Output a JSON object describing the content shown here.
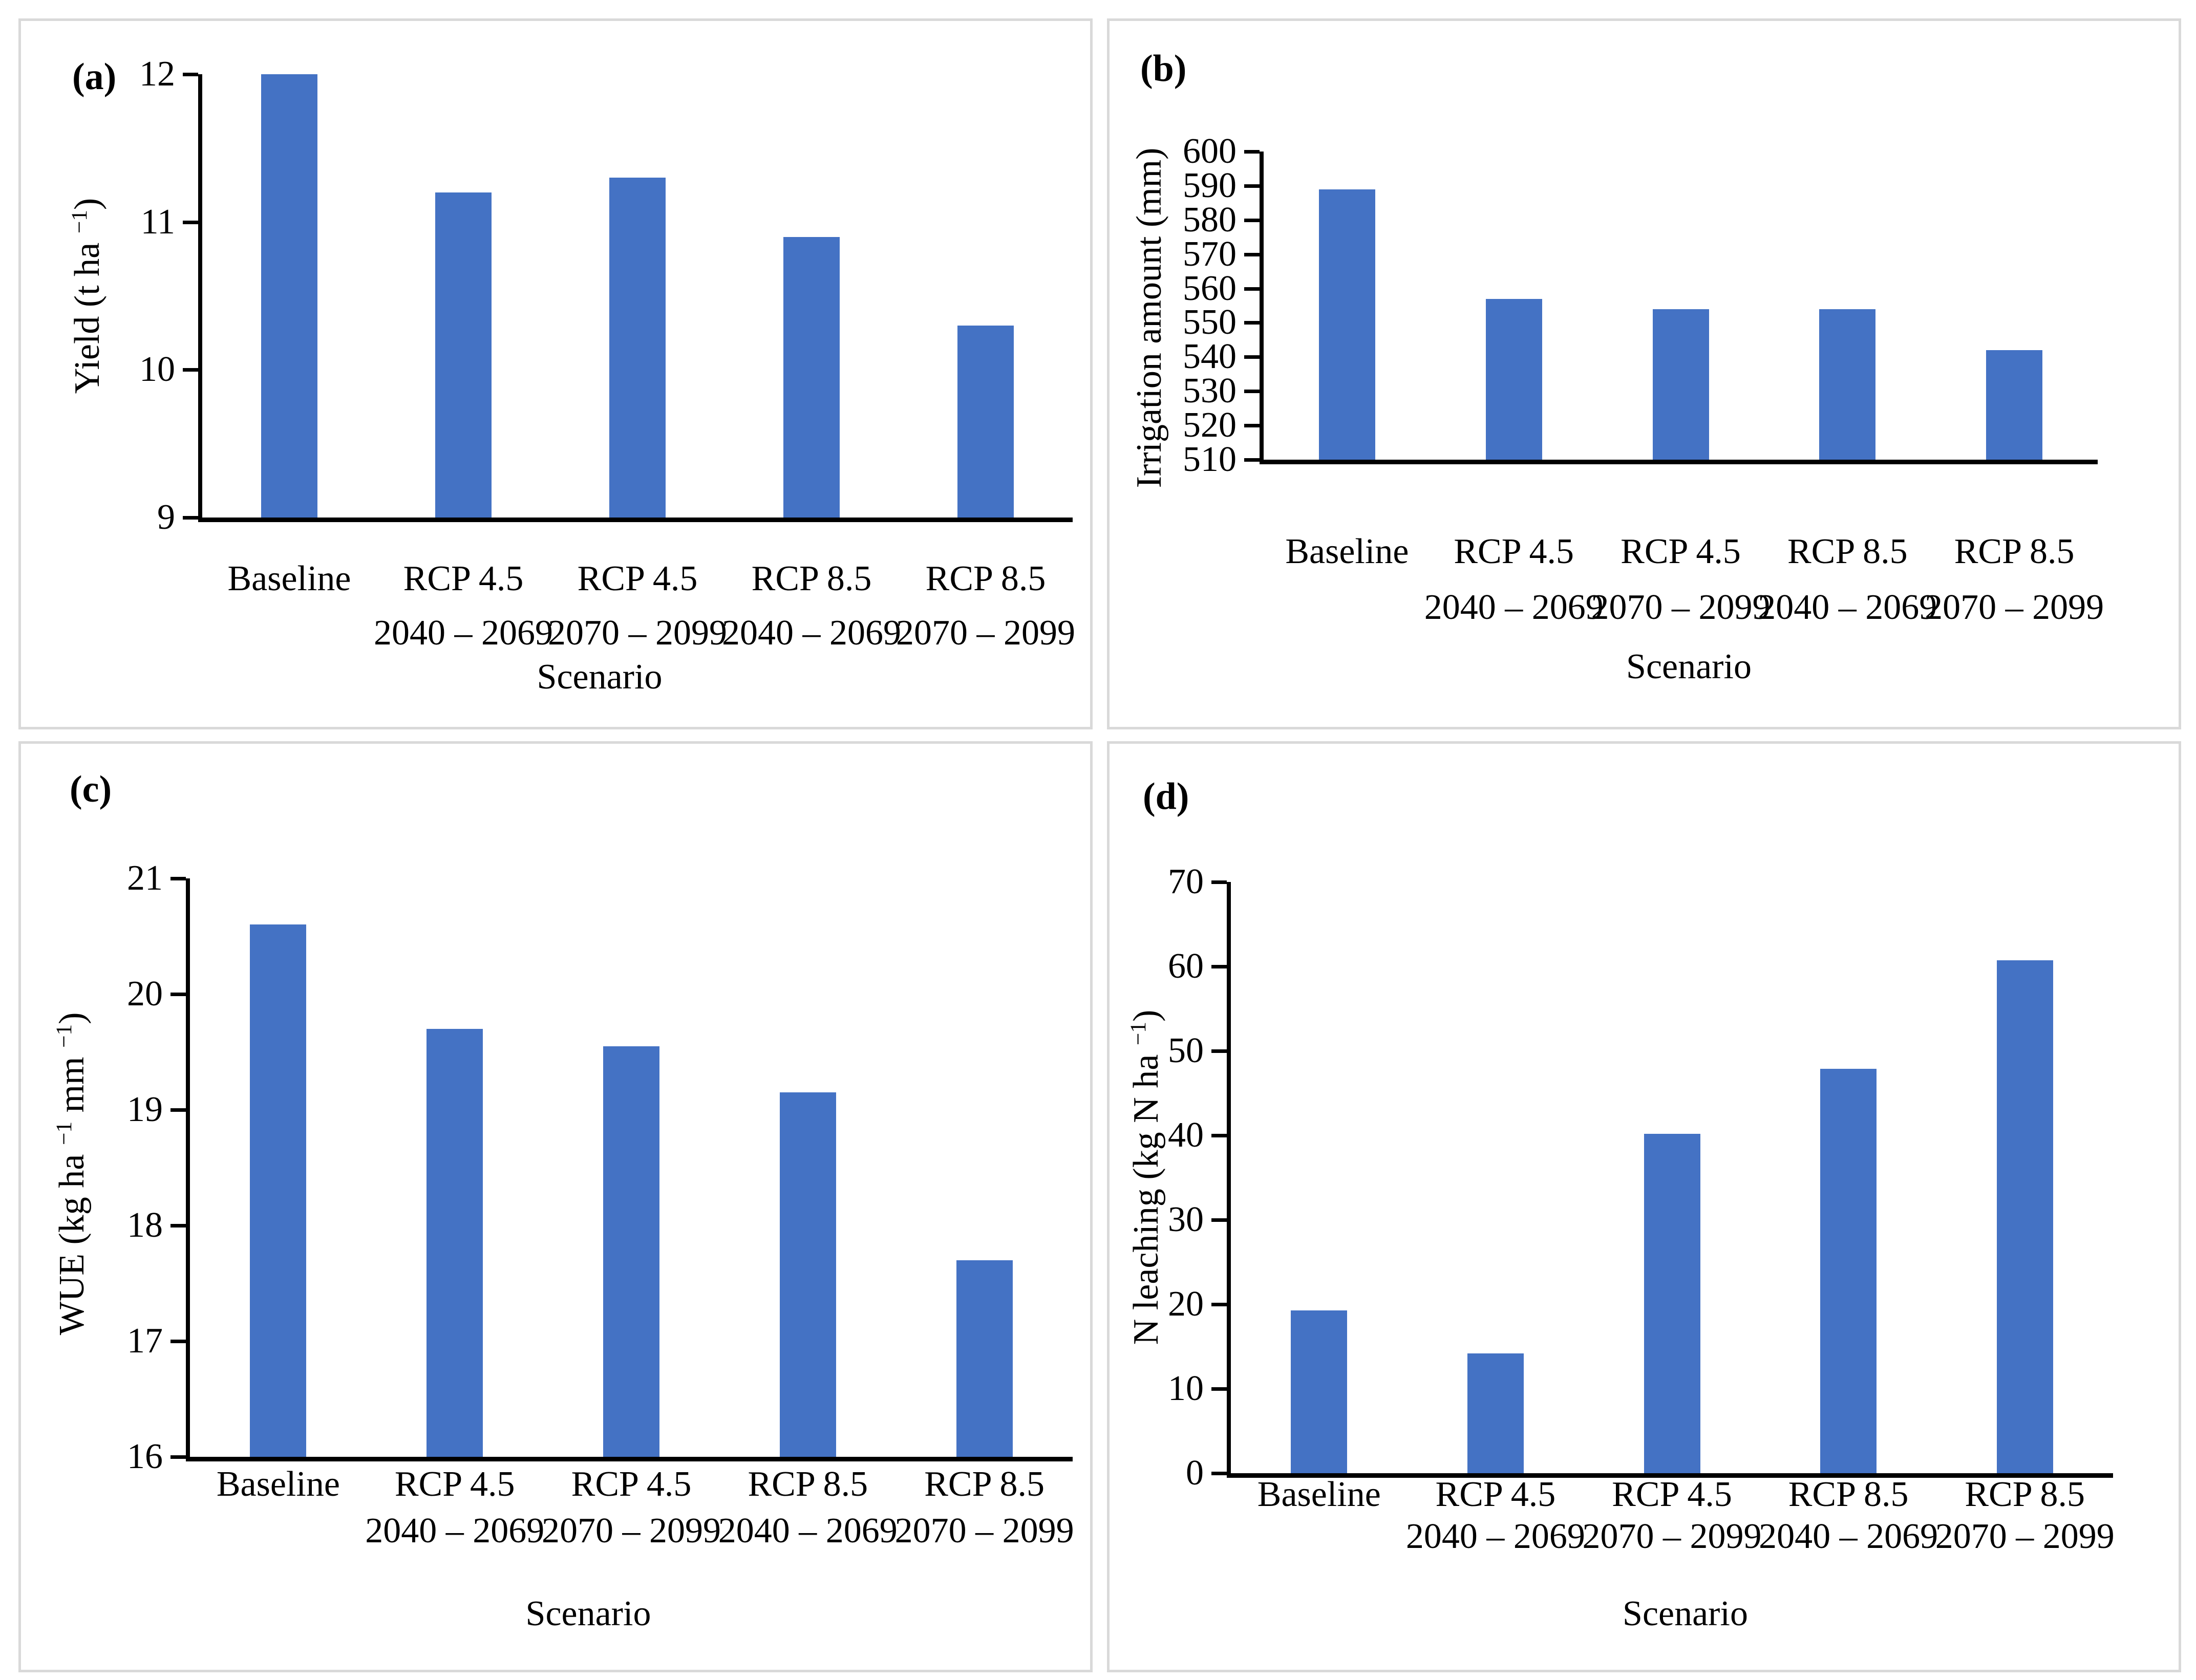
{
  "styles": {
    "bar_color": "#4472C4",
    "panel_border_color": "#D9D9D9",
    "axis_color": "#000000",
    "background": "#FFFFFF"
  },
  "chart_data": [
    {
      "type": "bar",
      "panel_label": "(a)",
      "ylabel_text": "Yield (t ha −1)",
      "ylabel_parts": [
        {
          "t": "Yield (t ha "
        },
        {
          "sup": "−1"
        },
        {
          "t": ")"
        }
      ],
      "xlabel": "Scenario",
      "categories": [
        "Baseline",
        "RCP 4.5",
        "RCP 4.5",
        "RCP 8.5",
        "RCP 8.5"
      ],
      "category_sublabels": [
        "",
        "2040 – 2069",
        "2070 – 2099",
        "2040 – 2069",
        "2070 – 2099"
      ],
      "values": [
        12.0,
        11.2,
        11.3,
        10.9,
        10.3
      ],
      "ylim": [
        9,
        12
      ],
      "yticks": [
        9,
        10,
        11,
        12
      ],
      "ytick_step": 1,
      "grid": false,
      "legend": null
    },
    {
      "type": "bar",
      "panel_label": "(b)",
      "ylabel_text": "Irrigation amount (mm)",
      "ylabel_parts": [
        {
          "t": "Irrigation amount (mm)"
        }
      ],
      "xlabel": "Scenario",
      "categories": [
        "Baseline",
        "RCP 4.5",
        "RCP 4.5",
        "RCP 8.5",
        "RCP 8.5"
      ],
      "category_sublabels": [
        "",
        "2040 – 2069",
        "2070 – 2099",
        "2040 – 2069",
        "2070 – 2099"
      ],
      "values": [
        589,
        557,
        554,
        554,
        542
      ],
      "ylim": [
        510,
        600
      ],
      "yticks": [
        510,
        520,
        530,
        540,
        550,
        560,
        570,
        580,
        590,
        600
      ],
      "ytick_step": 10,
      "grid": false,
      "legend": null
    },
    {
      "type": "bar",
      "panel_label": "(c)",
      "ylabel_text": "WUE (kg ha −1 mm −1)",
      "ylabel_parts": [
        {
          "t": "WUE (kg  ha "
        },
        {
          "sup": "−1"
        },
        {
          "t": "  mm "
        },
        {
          "sup": "−1"
        },
        {
          "t": ")"
        }
      ],
      "xlabel": "Scenario",
      "categories": [
        "Baseline",
        "RCP 4.5",
        "RCP 4.5",
        "RCP 8.5",
        "RCP 8.5"
      ],
      "category_sublabels": [
        "",
        "2040 – 2069",
        "2070 – 2099",
        "2040 – 2069",
        "2070 – 2099"
      ],
      "values": [
        20.6,
        19.7,
        19.55,
        19.15,
        17.7
      ],
      "ylim": [
        16,
        21
      ],
      "yticks": [
        16,
        17,
        18,
        19,
        20,
        21
      ],
      "ytick_step": 1,
      "grid": false,
      "legend": null
    },
    {
      "type": "bar",
      "panel_label": "(d)",
      "ylabel_text": "N leaching (kg N ha −1)",
      "ylabel_parts": [
        {
          "t": "N leaching (kg N ha "
        },
        {
          "sup": "−1"
        },
        {
          "t": ")"
        }
      ],
      "xlabel": "Scenario",
      "categories": [
        "Baseline",
        "RCP 4.5",
        "RCP 4.5",
        "RCP 8.5",
        "RCP 8.5"
      ],
      "category_sublabels": [
        "",
        "2040 – 2069",
        "2070 – 2099",
        "2040 – 2069",
        "2070 – 2099"
      ],
      "values": [
        19.3,
        14.2,
        40.2,
        47.9,
        60.7
      ],
      "ylim": [
        0,
        70
      ],
      "yticks": [
        0,
        10,
        20,
        30,
        40,
        50,
        60,
        70
      ],
      "ytick_step": 10,
      "grid": false,
      "legend": null
    }
  ]
}
